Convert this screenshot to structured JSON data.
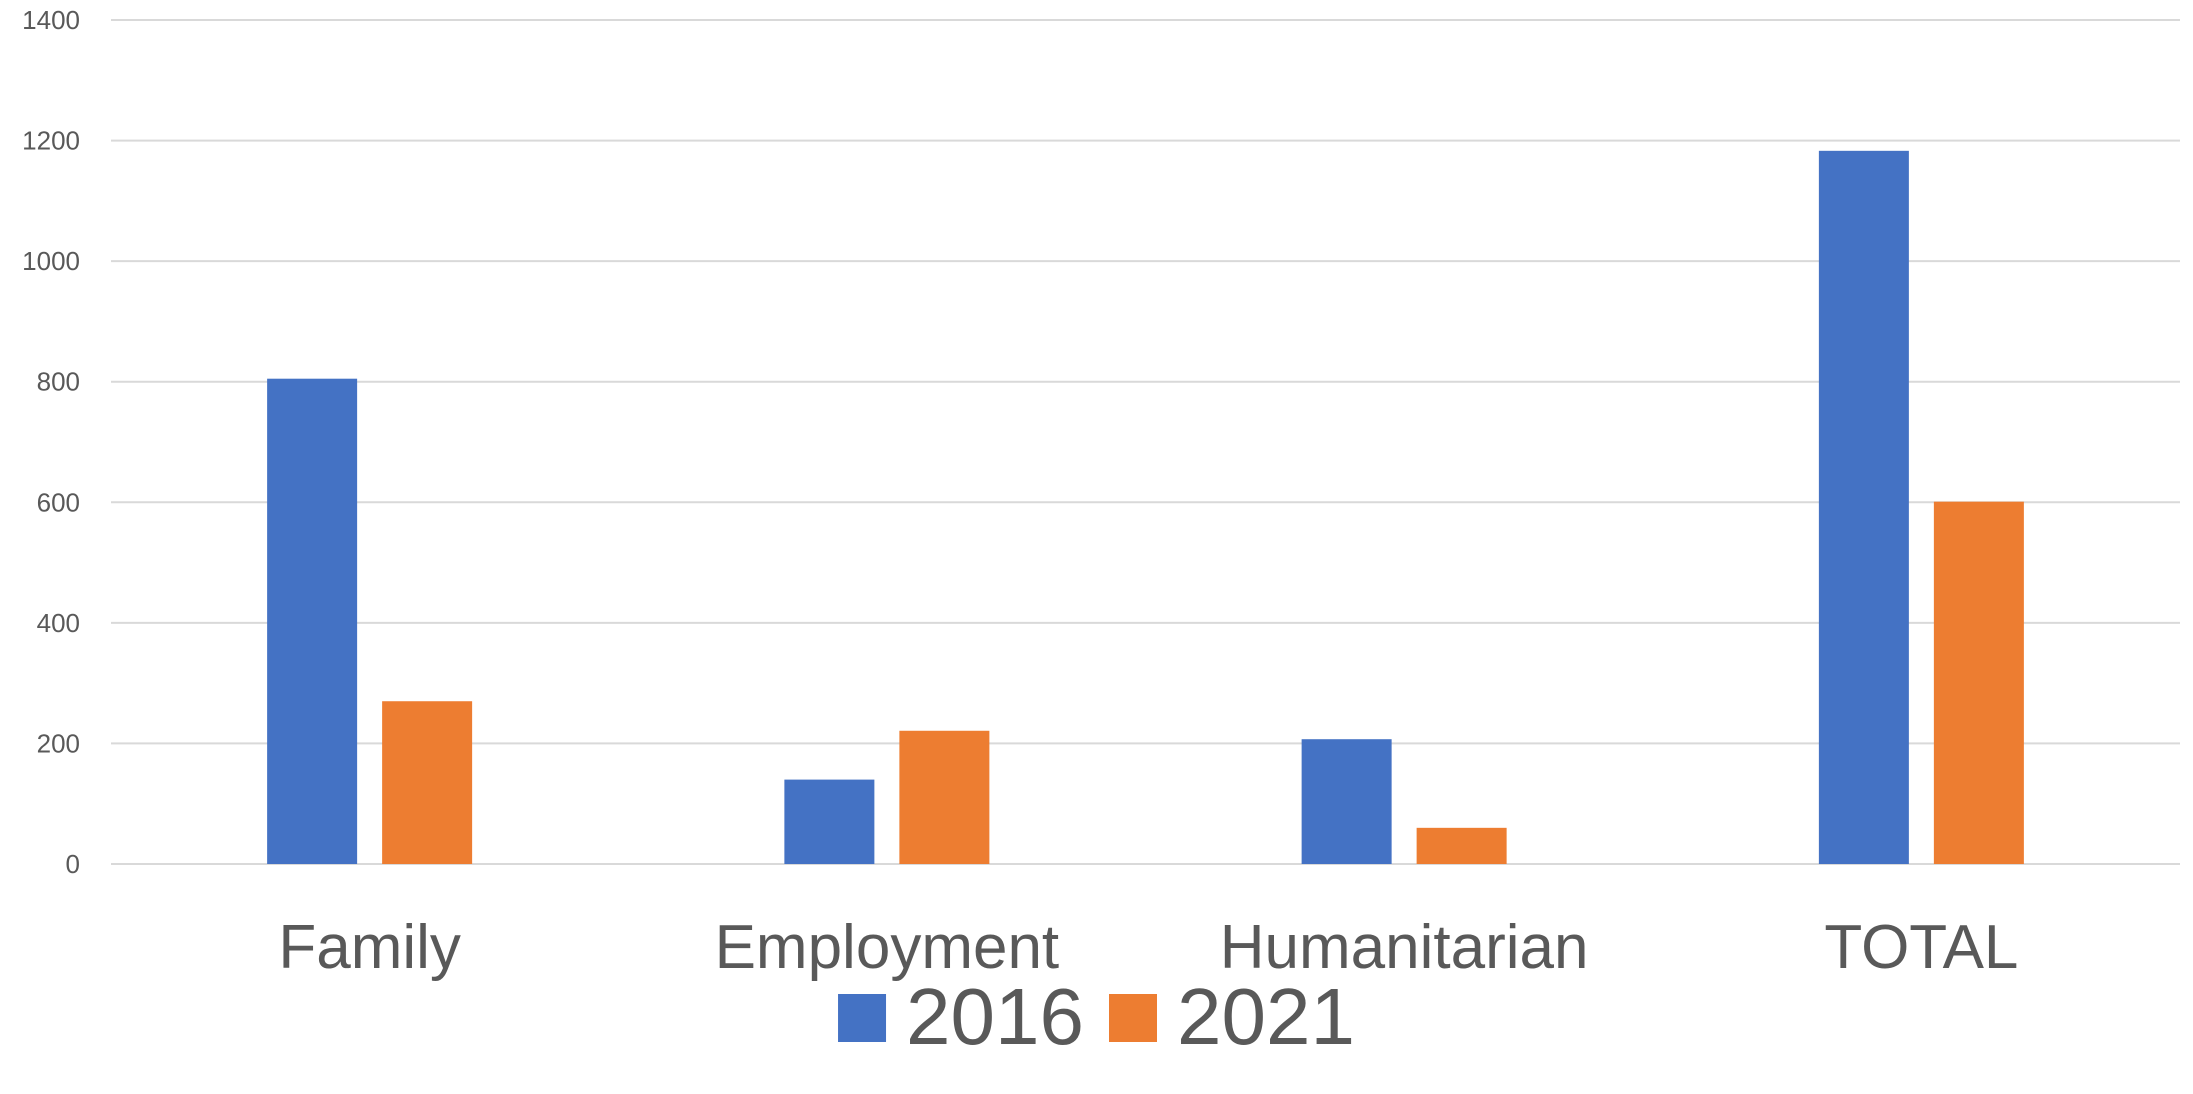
{
  "chart_data": {
    "type": "bar",
    "title": "",
    "xlabel": "",
    "ylabel": "",
    "categories": [
      "Family",
      "Employment",
      "Humanitarian",
      "TOTAL"
    ],
    "series": [
      {
        "name": "2016",
        "color": "#4472C4",
        "values": [
          805,
          140,
          207,
          1183
        ]
      },
      {
        "name": "2021",
        "color": "#ED7D31",
        "values": [
          270,
          221,
          60,
          601
        ]
      }
    ],
    "ylim": [
      0,
      1400
    ],
    "yticks": [
      0,
      200,
      400,
      600,
      800,
      1000,
      1200,
      1400
    ],
    "grid": true,
    "legend_position": "bottom"
  }
}
